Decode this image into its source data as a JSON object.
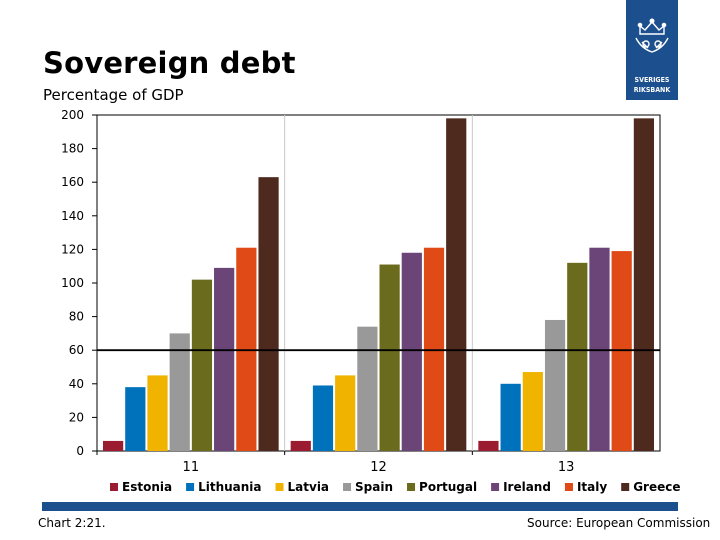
{
  "header": {
    "title": "Sovereign debt",
    "subtitle": "Percentage of GDP"
  },
  "logo": {
    "line1": "SVERIGES",
    "line2": "RIKSBANK",
    "color": "#1b4f8e"
  },
  "footer": {
    "chart_number": "Chart 2:21.",
    "source": "Source: European Commission"
  },
  "chart_data": {
    "type": "bar",
    "categories": [
      "11",
      "12",
      "13"
    ],
    "ylim": [
      0,
      200
    ],
    "yticks": [
      0,
      20,
      40,
      60,
      80,
      100,
      120,
      140,
      160,
      180,
      200
    ],
    "reference_line": 60,
    "legend_position": "bottom",
    "series": [
      {
        "name": "Estonia",
        "color": "#9b1b30",
        "values": [
          6,
          6,
          6
        ]
      },
      {
        "name": "Lithuania",
        "color": "#0072bc",
        "values": [
          38,
          39,
          40
        ]
      },
      {
        "name": "Latvia",
        "color": "#f0b400",
        "values": [
          45,
          45,
          47
        ]
      },
      {
        "name": "Spain",
        "color": "#999999",
        "values": [
          70,
          74,
          78
        ]
      },
      {
        "name": "Portugal",
        "color": "#6b6b1e",
        "values": [
          102,
          111,
          112
        ]
      },
      {
        "name": "Ireland",
        "color": "#6b4577",
        "values": [
          109,
          118,
          121
        ]
      },
      {
        "name": "Italy",
        "color": "#e04a16",
        "values": [
          121,
          121,
          119
        ]
      },
      {
        "name": "Greece",
        "color": "#4e2a1e",
        "values": [
          163,
          198,
          198
        ]
      }
    ]
  }
}
